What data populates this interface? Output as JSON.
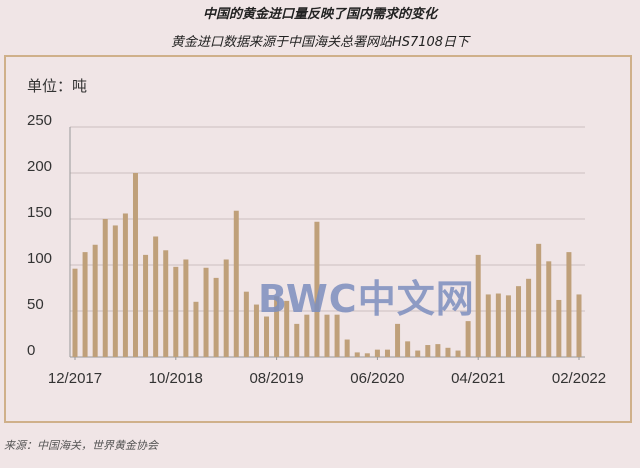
{
  "title": "中国的黄金进口量反映了国内需求的变化",
  "subtitle": "黄金进口数据来源于中国海关总署网站HS7108日下",
  "source": "来源：中国海关，世界黄金协会",
  "watermark": "BWC中文网",
  "chart_data": {
    "type": "bar",
    "ylabel": "单位：吨",
    "ylim": [
      0,
      250
    ],
    "yticks": [
      "0",
      "50",
      "100",
      "150",
      "200",
      "250"
    ],
    "grid": true,
    "bar_color": "#bfa07a",
    "xtick_labels": [
      "12/2017",
      "10/2018",
      "08/2019",
      "06/2020",
      "04/2021",
      "02/2022"
    ],
    "xtick_positions": [
      0,
      10,
      20,
      30,
      40,
      50
    ],
    "categories": [
      "12/2017",
      "01/2018",
      "02/2018",
      "03/2018",
      "04/2018",
      "05/2018",
      "06/2018",
      "07/2018",
      "08/2018",
      "09/2018",
      "10/2018",
      "11/2018",
      "12/2018",
      "01/2019",
      "02/2019",
      "03/2019",
      "04/2019",
      "05/2019",
      "06/2019",
      "07/2019",
      "08/2019",
      "09/2019",
      "10/2019",
      "11/2019",
      "12/2019",
      "01/2020",
      "02/2020",
      "03/2020",
      "04/2020",
      "05/2020",
      "06/2020",
      "07/2020",
      "08/2020",
      "09/2020",
      "10/2020",
      "11/2020",
      "12/2020",
      "01/2021",
      "02/2021",
      "03/2021",
      "04/2021",
      "05/2021",
      "06/2021",
      "07/2021",
      "08/2021",
      "09/2021",
      "10/2021",
      "11/2021",
      "12/2021",
      "01/2022",
      "02/2022"
    ],
    "values": [
      96,
      114,
      122,
      150,
      143,
      156,
      200,
      111,
      131,
      116,
      98,
      106,
      60,
      97,
      86,
      106,
      159,
      71,
      57,
      44,
      66,
      61,
      36,
      46,
      147,
      46,
      46,
      19,
      5,
      4,
      8,
      8,
      36,
      17,
      7,
      13,
      14,
      10,
      7,
      39,
      111,
      68,
      69,
      67,
      77,
      85,
      123,
      104,
      62,
      114,
      68
    ]
  }
}
